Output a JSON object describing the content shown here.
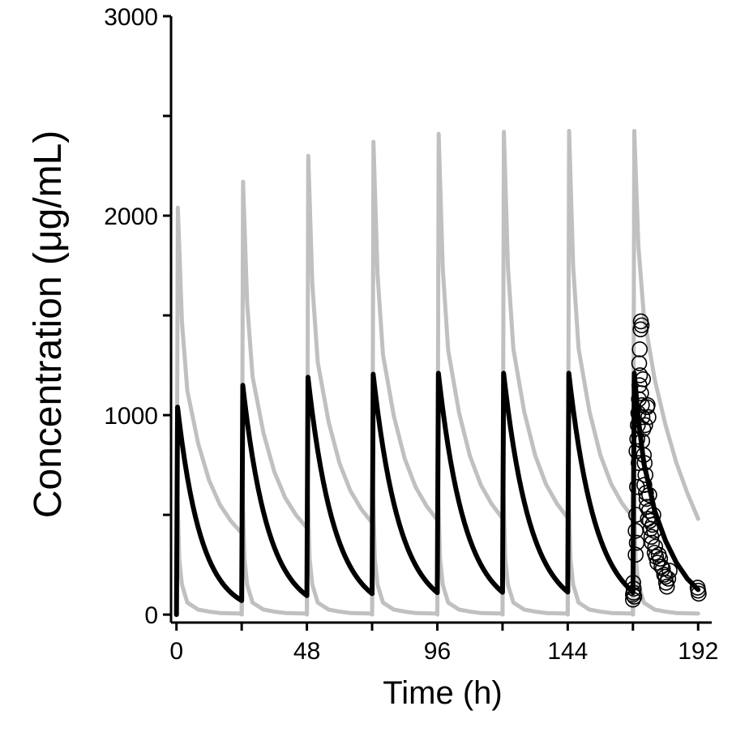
{
  "chart_data": {
    "type": "line",
    "title": "",
    "xlabel": "Time (h)",
    "ylabel": "Concentration (μg/mL)",
    "xlim": [
      -2,
      197
    ],
    "ylim": [
      -40,
      3000
    ],
    "x_ticks": [
      0,
      48,
      96,
      144,
      192
    ],
    "y_ticks": [
      0,
      1000,
      2000,
      3000
    ],
    "y_minor_ticks": [
      500,
      1500,
      2500
    ],
    "grid": false,
    "dosing_interval_h": 24,
    "series": [
      {
        "role": "upper-band",
        "color": "#c0c0c0",
        "peaks": [
          2040,
          2170,
          2300,
          2370,
          2410,
          2420,
          2425,
          2425
        ],
        "x": [
          0,
          0.5,
          2,
          4,
          8,
          12,
          16,
          20,
          24
        ],
        "y_frac": [
          0,
          1,
          0.72,
          0.55,
          0.42,
          0.33,
          0.27,
          0.23,
          0.2
        ],
        "tail": {
          "x": [
            168,
            168.5,
            170,
            172,
            176,
            180,
            184,
            188,
            192
          ],
          "y": [
            0,
            2425,
            1850,
            1500,
            1180,
            950,
            760,
            610,
            480
          ]
        }
      },
      {
        "role": "median",
        "color": "#000000",
        "peaks": [
          1040,
          1150,
          1190,
          1205,
          1210,
          1210,
          1210
        ],
        "troughs": [
          70,
          95,
          105,
          110,
          112,
          113,
          114
        ],
        "tail": {
          "x": [
            168,
            168.5,
            170,
            172,
            176,
            180,
            184,
            188,
            192
          ],
          "y": [
            110,
            1210,
            980,
            760,
            520,
            370,
            260,
            180,
            125
          ]
        }
      },
      {
        "role": "lower-band",
        "color": "#c0c0c0",
        "x": [
          0,
          0.3,
          1,
          2,
          4,
          8,
          12,
          16,
          24
        ],
        "y": [
          0,
          620,
          280,
          150,
          60,
          25,
          15,
          8,
          5
        ]
      }
    ],
    "observed": {
      "marker": "open-circle",
      "color": "#000000",
      "points": [
        [
          168,
          75
        ],
        [
          168,
          100
        ],
        [
          168.3,
          130
        ],
        [
          168.5,
          90
        ],
        [
          168.1,
          160
        ],
        [
          168.2,
          110
        ],
        [
          169.0,
          300
        ],
        [
          169.0,
          420
        ],
        [
          169.2,
          500
        ],
        [
          169.5,
          640
        ],
        [
          169.3,
          820
        ],
        [
          169.6,
          880
        ],
        [
          169.8,
          950
        ],
        [
          170.0,
          1010
        ],
        [
          170.2,
          1080
        ],
        [
          170.4,
          1150
        ],
        [
          170.6,
          1200
        ],
        [
          170.3,
          1260
        ],
        [
          170.5,
          1330
        ],
        [
          170.8,
          1430
        ],
        [
          170.9,
          1470
        ],
        [
          171.2,
          1450
        ],
        [
          171.0,
          1110
        ],
        [
          171.3,
          1050
        ],
        [
          171.5,
          990
        ],
        [
          171.8,
          930
        ],
        [
          171.4,
          870
        ],
        [
          172.0,
          800
        ],
        [
          172.3,
          760
        ],
        [
          172.6,
          700
        ],
        [
          172.2,
          650
        ],
        [
          172.8,
          610
        ],
        [
          173.0,
          580
        ],
        [
          173.2,
          1040
        ],
        [
          173.4,
          1050
        ],
        [
          173.7,
          990
        ],
        [
          173.1,
          540
        ],
        [
          173.9,
          520
        ],
        [
          174.2,
          470
        ],
        [
          174.5,
          430
        ],
        [
          174.8,
          390
        ],
        [
          175.0,
          360
        ],
        [
          175.5,
          500
        ],
        [
          175.8,
          420
        ],
        [
          176.0,
          310
        ],
        [
          176.5,
          290
        ],
        [
          177.0,
          260
        ],
        [
          177.5,
          300
        ],
        [
          178.0,
          280
        ],
        [
          178.5,
          240
        ],
        [
          179.0,
          230
        ],
        [
          179.5,
          200
        ],
        [
          180.0,
          190
        ],
        [
          180.2,
          160
        ],
        [
          180.5,
          140
        ],
        [
          181.0,
          180
        ],
        [
          181.5,
          220
        ],
        [
          172.5,
          950
        ],
        [
          171.7,
          1180
        ],
        [
          170.1,
          760
        ],
        [
          169.4,
          360
        ],
        [
          174.0,
          600
        ],
        [
          173.5,
          480
        ],
        [
          175.2,
          450
        ],
        [
          176.2,
          340
        ],
        [
          192.0,
          120
        ],
        [
          191.8,
          135
        ],
        [
          192.2,
          105
        ]
      ]
    }
  }
}
